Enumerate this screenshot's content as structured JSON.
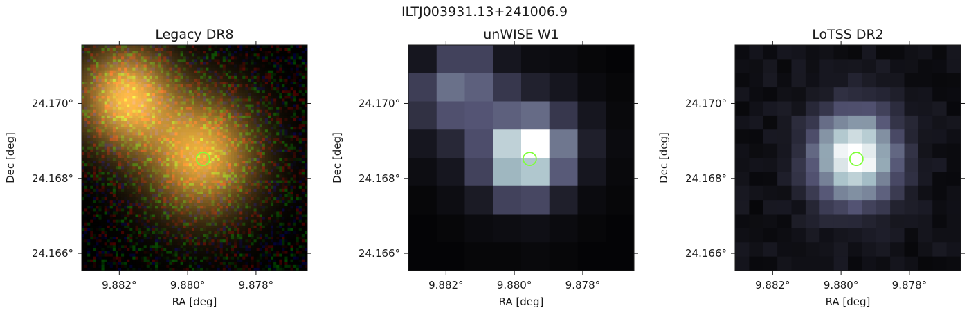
{
  "figure": {
    "suptitle": "ILTJ003931.13+241006.9"
  },
  "colors": {
    "marker": "#7fff3a",
    "axis": "#1a1a1a"
  },
  "chart_data": [
    {
      "type": "heatmap",
      "title": "Legacy DR8",
      "xlabel": "RA [deg]",
      "ylabel": "Dec [deg]",
      "xlim": [
        9.8831,
        9.8765
      ],
      "ylim": [
        24.16554,
        24.17156
      ],
      "xticks": [
        9.882,
        9.88,
        9.878
      ],
      "xtick_labels": [
        "9.882°",
        "9.880°",
        "9.878°"
      ],
      "yticks": [
        24.17,
        24.168,
        24.166
      ],
      "ytick_labels": [
        "24.170°",
        "24.168°",
        "24.166°"
      ],
      "colormap": "rgb",
      "sources": [
        {
          "ra": 9.8818,
          "dec": 24.17017,
          "amp": 1.0,
          "sigma": 0.00095,
          "color": [
            240,
            178,
            70
          ]
        },
        {
          "ra": 9.8796,
          "dec": 24.16863,
          "amp": 1.0,
          "sigma": 0.0011,
          "color": [
            230,
            170,
            60
          ]
        }
      ],
      "marker": {
        "ra": 9.87955,
        "dec": 24.16852,
        "label": "ILTJ003931.13+241006.9"
      }
    },
    {
      "type": "heatmap",
      "title": "unWISE W1",
      "xlabel": "RA [deg]",
      "ylabel": "Dec [deg]",
      "xlim": [
        9.8831,
        9.8765
      ],
      "ylim": [
        24.16554,
        24.17156
      ],
      "xticks": [
        9.882,
        9.88,
        9.878
      ],
      "xtick_labels": [
        "9.882°",
        "9.880°",
        "9.878°"
      ],
      "yticks": [
        24.17,
        24.168,
        24.166
      ],
      "ytick_labels": [
        "24.170°",
        "24.168°",
        "24.166°"
      ],
      "colormap": "bone",
      "grid": [
        [
          0.1,
          0.3,
          0.3,
          0.1,
          0.06,
          0.05,
          0.03,
          0.02
        ],
        [
          0.28,
          0.48,
          0.42,
          0.25,
          0.15,
          0.1,
          0.05,
          0.03
        ],
        [
          0.22,
          0.36,
          0.38,
          0.42,
          0.46,
          0.25,
          0.1,
          0.04
        ],
        [
          0.1,
          0.18,
          0.35,
          0.82,
          1.0,
          0.5,
          0.14,
          0.05
        ],
        [
          0.06,
          0.1,
          0.3,
          0.72,
          0.78,
          0.4,
          0.1,
          0.04
        ],
        [
          0.03,
          0.06,
          0.12,
          0.3,
          0.32,
          0.14,
          0.05,
          0.03
        ],
        [
          0.02,
          0.03,
          0.05,
          0.06,
          0.07,
          0.05,
          0.03,
          0.02
        ],
        [
          0.02,
          0.02,
          0.03,
          0.03,
          0.04,
          0.03,
          0.02,
          0.02
        ]
      ],
      "marker": {
        "ra": 9.87955,
        "dec": 24.16852,
        "label": "ILTJ003931.13+241006.9"
      }
    },
    {
      "type": "heatmap",
      "title": "LoTSS DR2",
      "xlabel": "RA [deg]",
      "ylabel": "Dec [deg]",
      "xlim": [
        9.8831,
        9.8765
      ],
      "ylim": [
        24.16554,
        24.17156
      ],
      "xticks": [
        9.882,
        9.88,
        9.878
      ],
      "xtick_labels": [
        "9.882°",
        "9.880°",
        "9.878°"
      ],
      "yticks": [
        24.17,
        24.168,
        24.166
      ],
      "ytick_labels": [
        "24.170°",
        "24.168°",
        "24.166°"
      ],
      "colormap": "bone",
      "sources": [
        {
          "ra": 9.8796,
          "dec": 24.16858,
          "amp": 1.0,
          "sigma": 0.00085
        }
      ],
      "background": 0.08,
      "marker": {
        "ra": 9.87955,
        "dec": 24.16852,
        "label": "ILTJ003931.13+241006.9"
      }
    }
  ]
}
